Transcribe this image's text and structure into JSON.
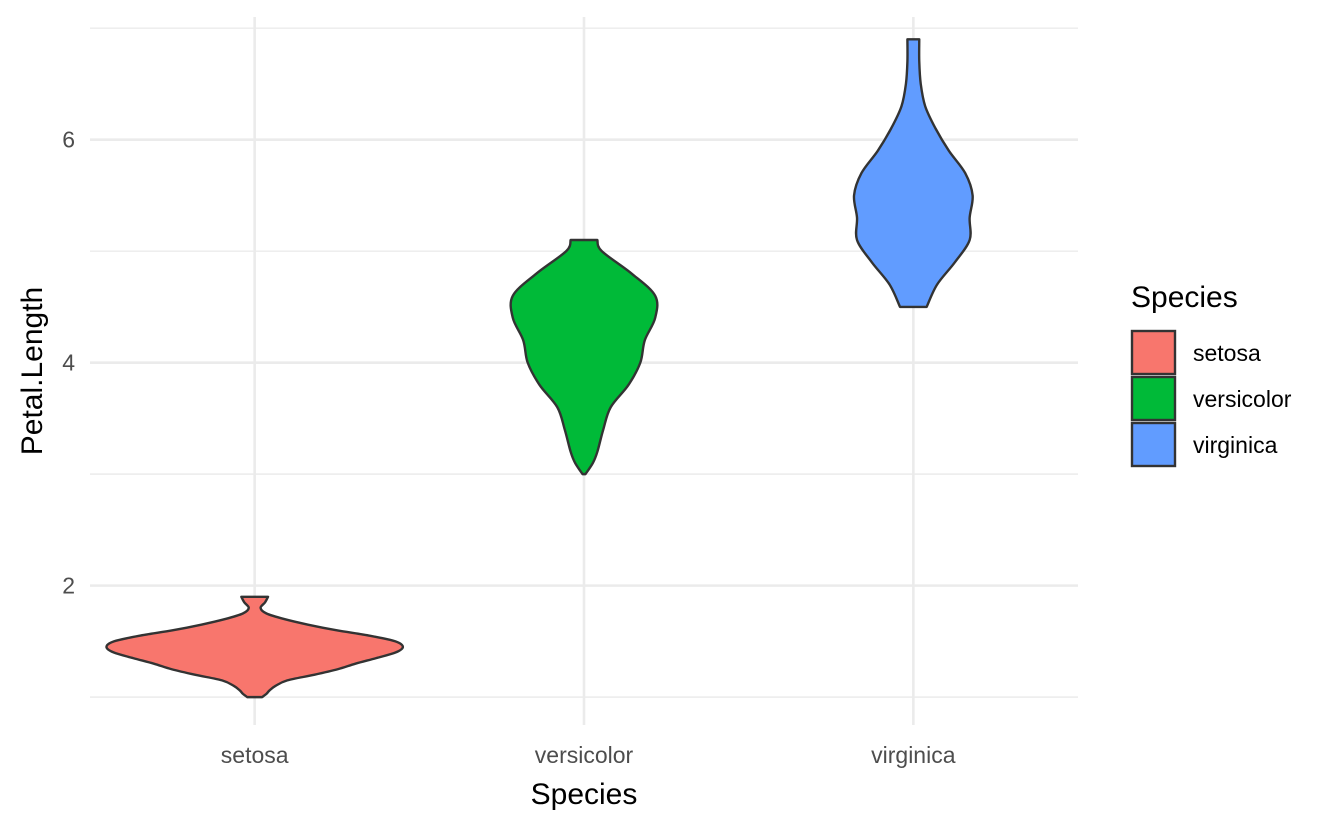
{
  "chart_data": {
    "type": "violin",
    "title": "",
    "xlabel": "Species",
    "ylabel": "Petal.Length",
    "categories": [
      "setosa",
      "versicolor",
      "virginica"
    ],
    "ylim": [
      0.75,
      7.1
    ],
    "yticks": [
      2,
      4,
      6
    ],
    "y_minor_ticks": [
      1,
      3,
      5,
      7
    ],
    "grid": true,
    "legend": {
      "title": "Species",
      "position": "right"
    },
    "series": [
      {
        "name": "setosa",
        "color": "#F8766D",
        "min": 1.0,
        "max": 1.9,
        "density": [
          [
            1.0,
            0.05
          ],
          [
            1.03,
            0.08
          ],
          [
            1.06,
            0.1
          ],
          [
            1.1,
            0.14
          ],
          [
            1.15,
            0.22
          ],
          [
            1.2,
            0.4
          ],
          [
            1.25,
            0.56
          ],
          [
            1.3,
            0.68
          ],
          [
            1.35,
            0.82
          ],
          [
            1.4,
            0.95
          ],
          [
            1.45,
            1.0
          ],
          [
            1.5,
            0.95
          ],
          [
            1.55,
            0.78
          ],
          [
            1.6,
            0.55
          ],
          [
            1.65,
            0.36
          ],
          [
            1.7,
            0.2
          ],
          [
            1.75,
            0.08
          ],
          [
            1.8,
            0.04
          ],
          [
            1.85,
            0.07
          ],
          [
            1.9,
            0.09
          ]
        ]
      },
      {
        "name": "versicolor",
        "color": "#00BA38",
        "min": 3.0,
        "max": 5.1,
        "density": [
          [
            3.0,
            0.01
          ],
          [
            3.1,
            0.06
          ],
          [
            3.2,
            0.09
          ],
          [
            3.4,
            0.13
          ],
          [
            3.6,
            0.18
          ],
          [
            3.8,
            0.3
          ],
          [
            4.0,
            0.38
          ],
          [
            4.2,
            0.41
          ],
          [
            4.4,
            0.48
          ],
          [
            4.6,
            0.48
          ],
          [
            4.8,
            0.32
          ],
          [
            5.0,
            0.12
          ],
          [
            5.1,
            0.09
          ]
        ]
      },
      {
        "name": "virginica",
        "color": "#619CFF",
        "min": 4.5,
        "max": 6.9,
        "density": [
          [
            4.5,
            0.09
          ],
          [
            4.7,
            0.16
          ],
          [
            4.9,
            0.28
          ],
          [
            5.1,
            0.38
          ],
          [
            5.3,
            0.38
          ],
          [
            5.5,
            0.4
          ],
          [
            5.7,
            0.35
          ],
          [
            5.9,
            0.24
          ],
          [
            6.1,
            0.15
          ],
          [
            6.3,
            0.08
          ],
          [
            6.5,
            0.05
          ],
          [
            6.7,
            0.04
          ],
          [
            6.9,
            0.04
          ]
        ]
      }
    ]
  }
}
